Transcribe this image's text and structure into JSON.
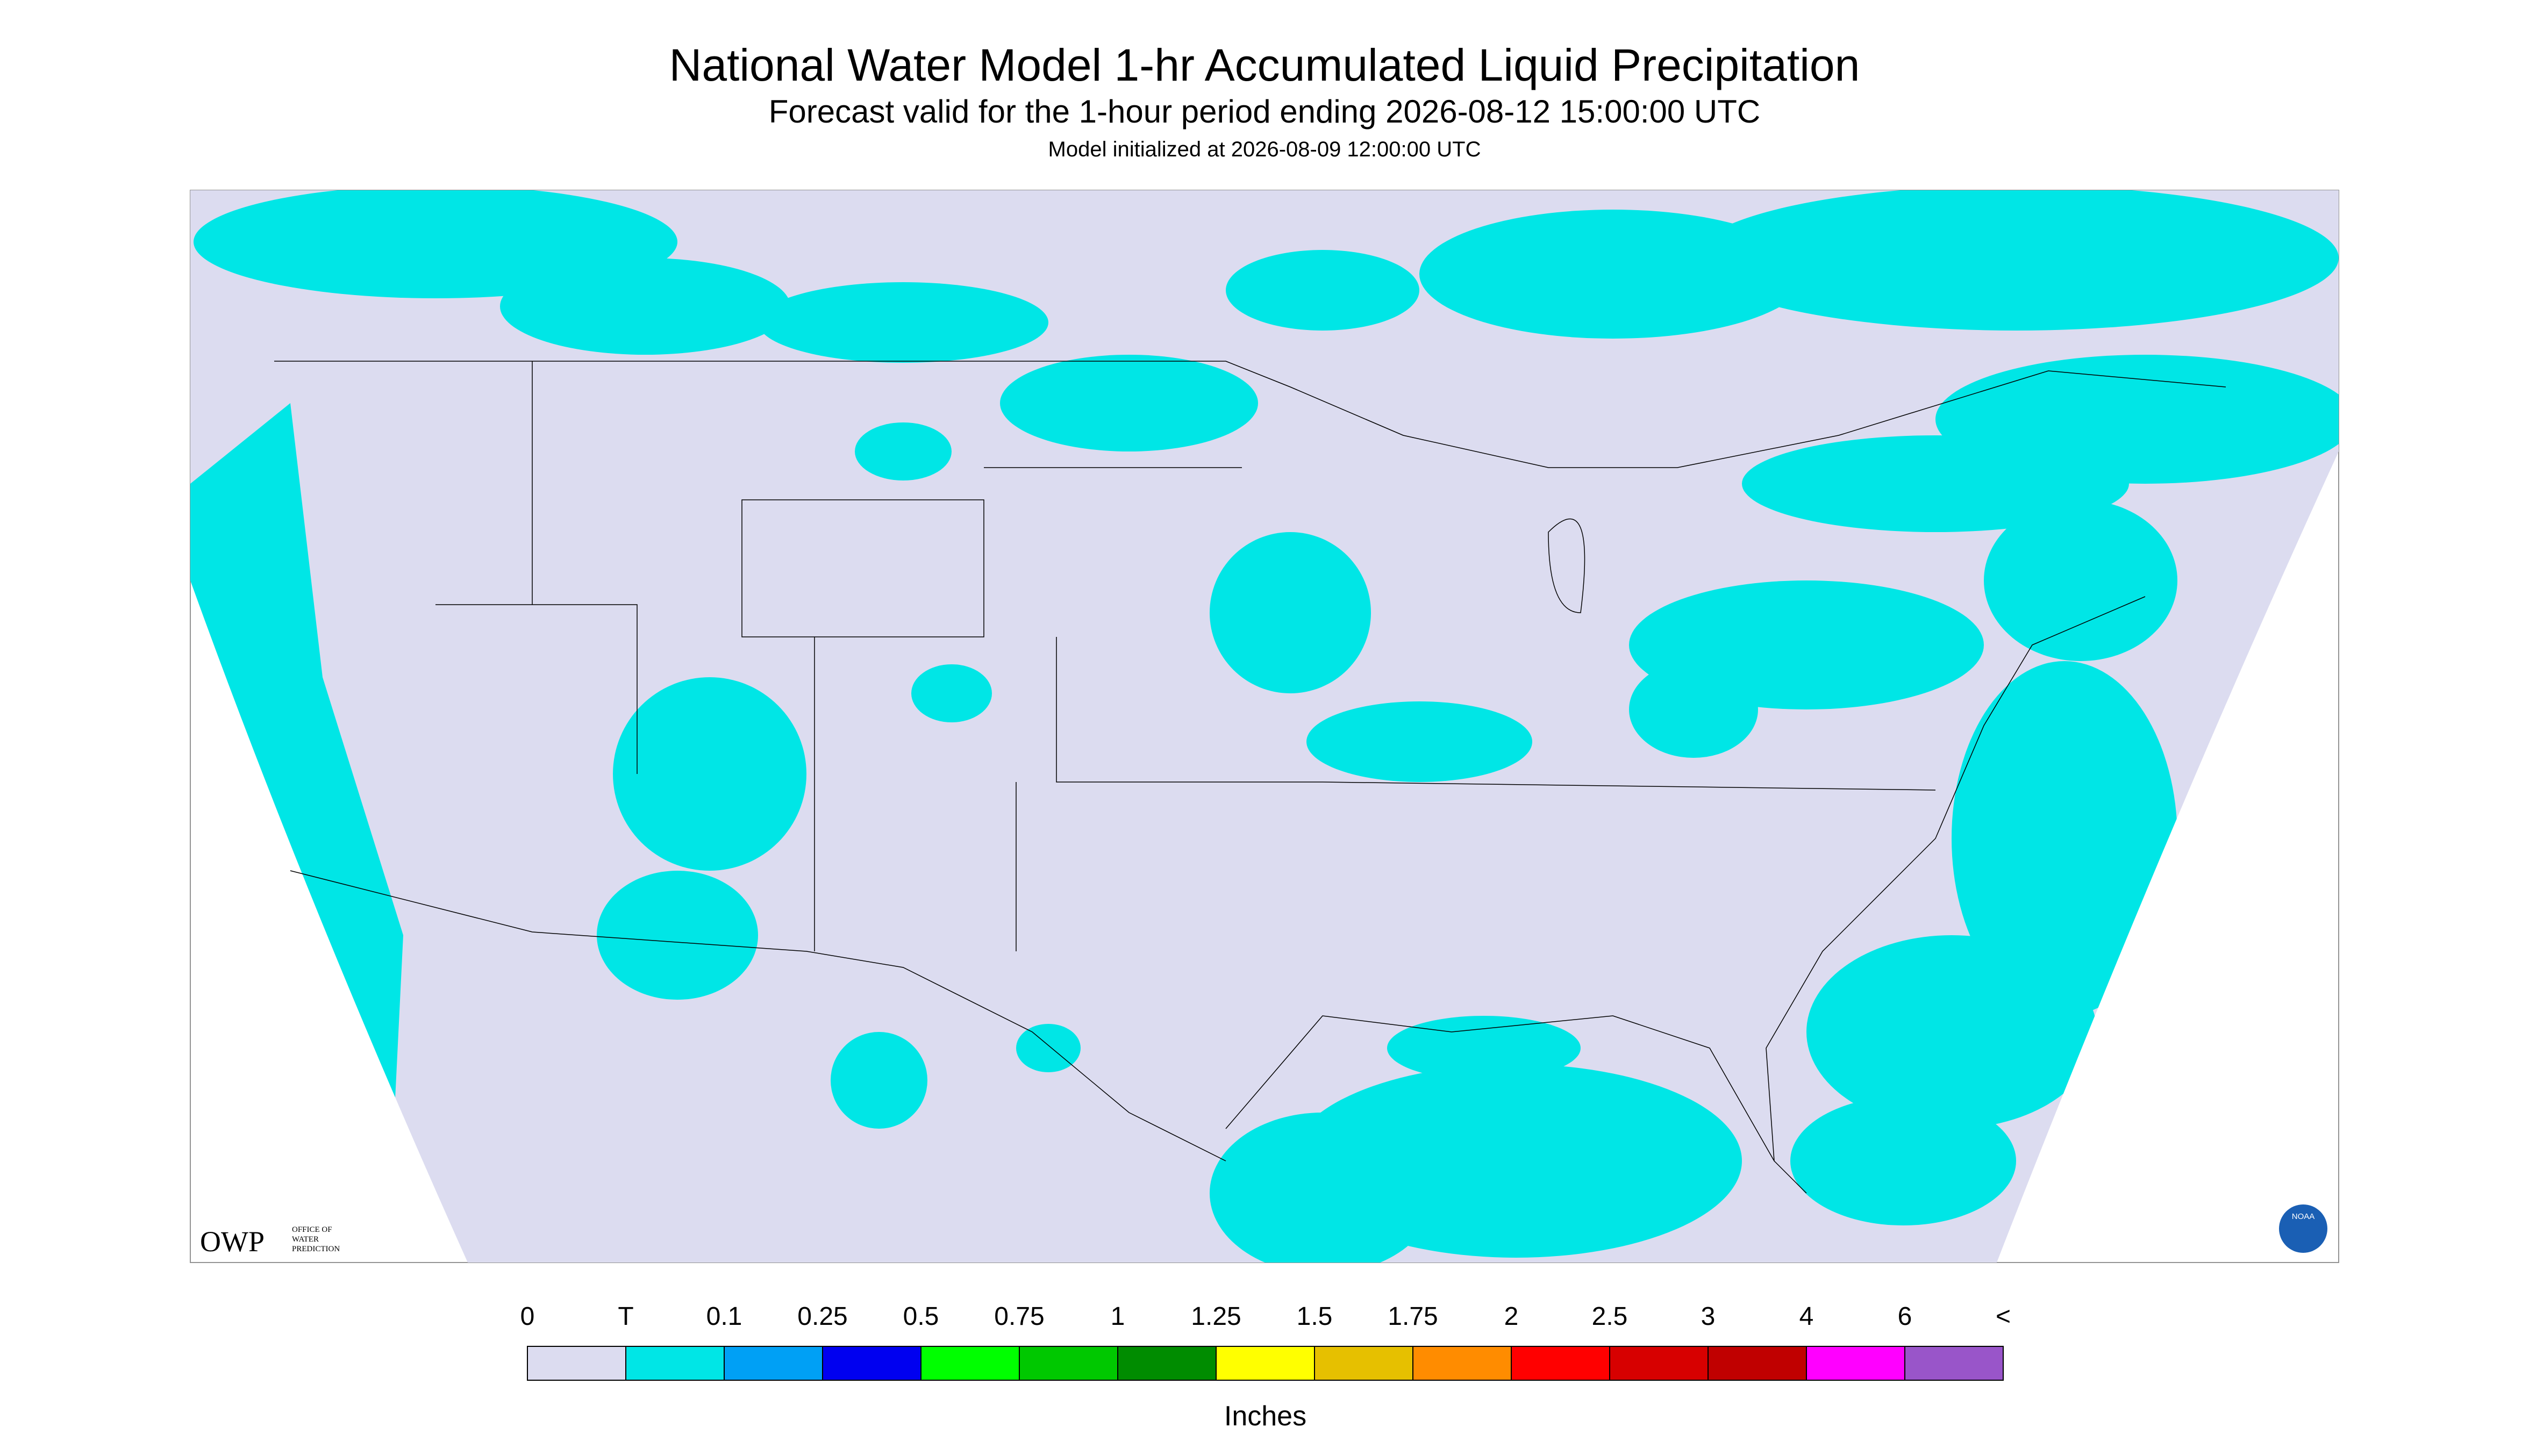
{
  "header": {
    "title": "National Water Model 1-hr Accumulated Liquid Precipitation",
    "subtitle": "Forecast valid for the 1-hour period ending 2026-08-12 15:00:00 UTC",
    "note": "Model initialized at 2026-08-09 12:00:00 UTC"
  },
  "logo": {
    "abbr": "OWP",
    "name": [
      "OFFICE OF",
      "WATER",
      "PREDICTION"
    ],
    "agency": "NOAA"
  },
  "legend": {
    "labels": [
      "0",
      "T",
      "0.1",
      "0.25",
      "0.5",
      "0.75",
      "1",
      "1.25",
      "1.5",
      "1.75",
      "2",
      "2.5",
      "3",
      "4",
      "6",
      "<"
    ],
    "colors": [
      "#dcdcf0",
      "#00e6e6",
      "#00a0f5",
      "#0000f0",
      "#00ff00",
      "#00c800",
      "#008c00",
      "#ffff00",
      "#e6c000",
      "#ff8c00",
      "#ff0000",
      "#d70000",
      "#c00000",
      "#ff00ff",
      "#9955c9"
    ],
    "unit": "Inches"
  }
}
